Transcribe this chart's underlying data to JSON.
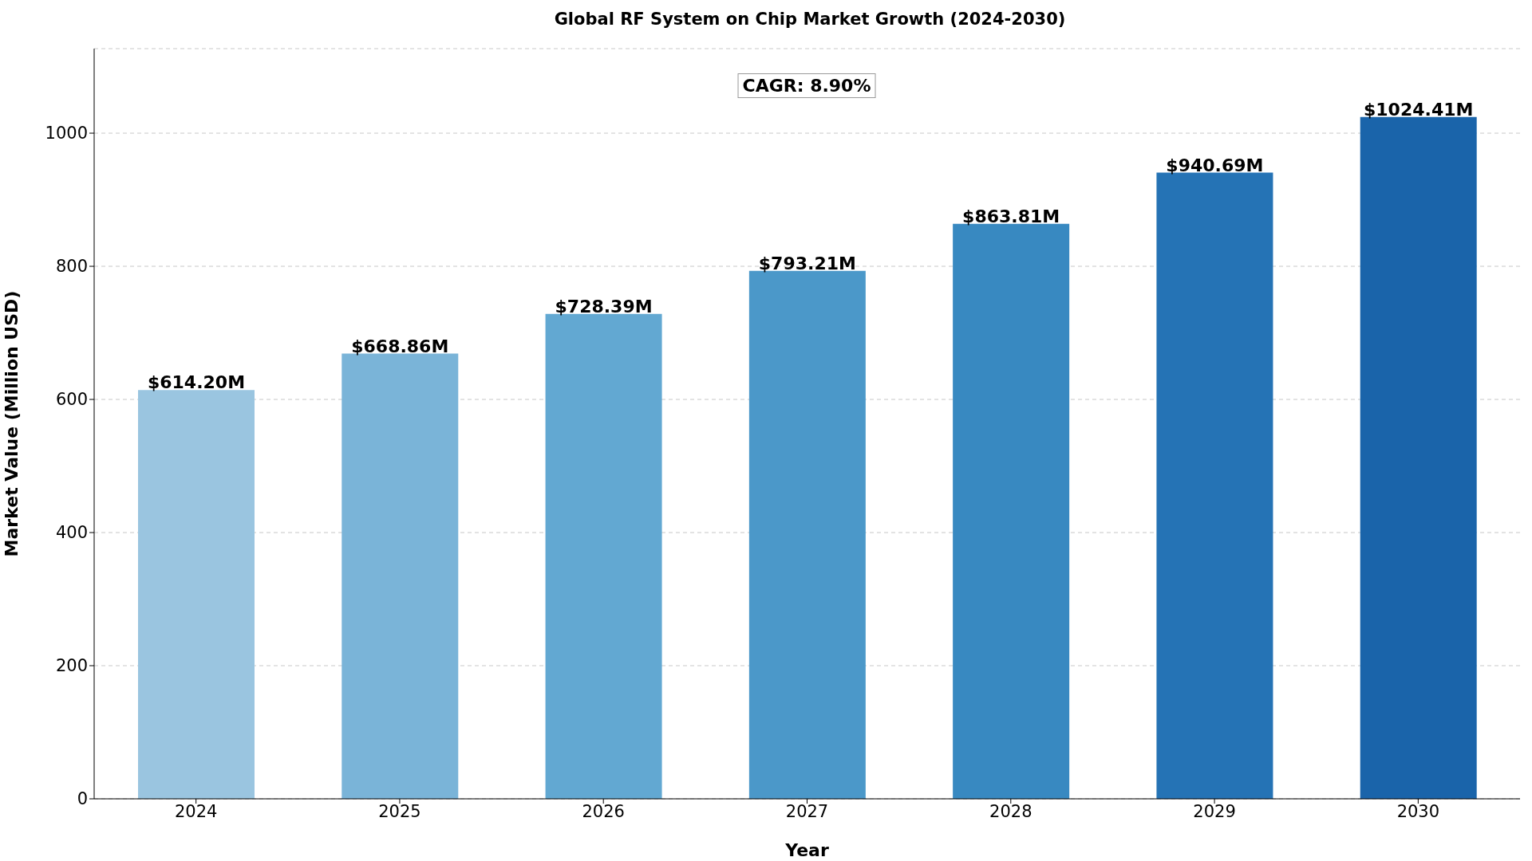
{
  "chart_data": {
    "type": "bar",
    "title": "Global RF System on Chip Market Growth (2024-2030)",
    "xlabel": "Year",
    "ylabel": "Market Value (Million USD)",
    "categories": [
      "2024",
      "2025",
      "2026",
      "2027",
      "2028",
      "2029",
      "2030"
    ],
    "values": [
      614.2,
      668.86,
      728.39,
      793.21,
      863.81,
      940.69,
      1024.41
    ],
    "colors": [
      "#9ac5e0",
      "#7ab4d8",
      "#62a8d2",
      "#4b98c9",
      "#3889c1",
      "#2573b5",
      "#1a64aa"
    ],
    "value_labels": [
      "$614.20M",
      "$668.86M",
      "$728.39M",
      "$793.21M",
      "$863.81M",
      "$940.69M",
      "$1024.41M"
    ],
    "ylim": [
      0,
      1127
    ],
    "yticks": [
      0,
      200,
      400,
      600,
      800,
      1000
    ],
    "grid": "y",
    "annotations": [
      "CAGR: 8.90%"
    ]
  }
}
